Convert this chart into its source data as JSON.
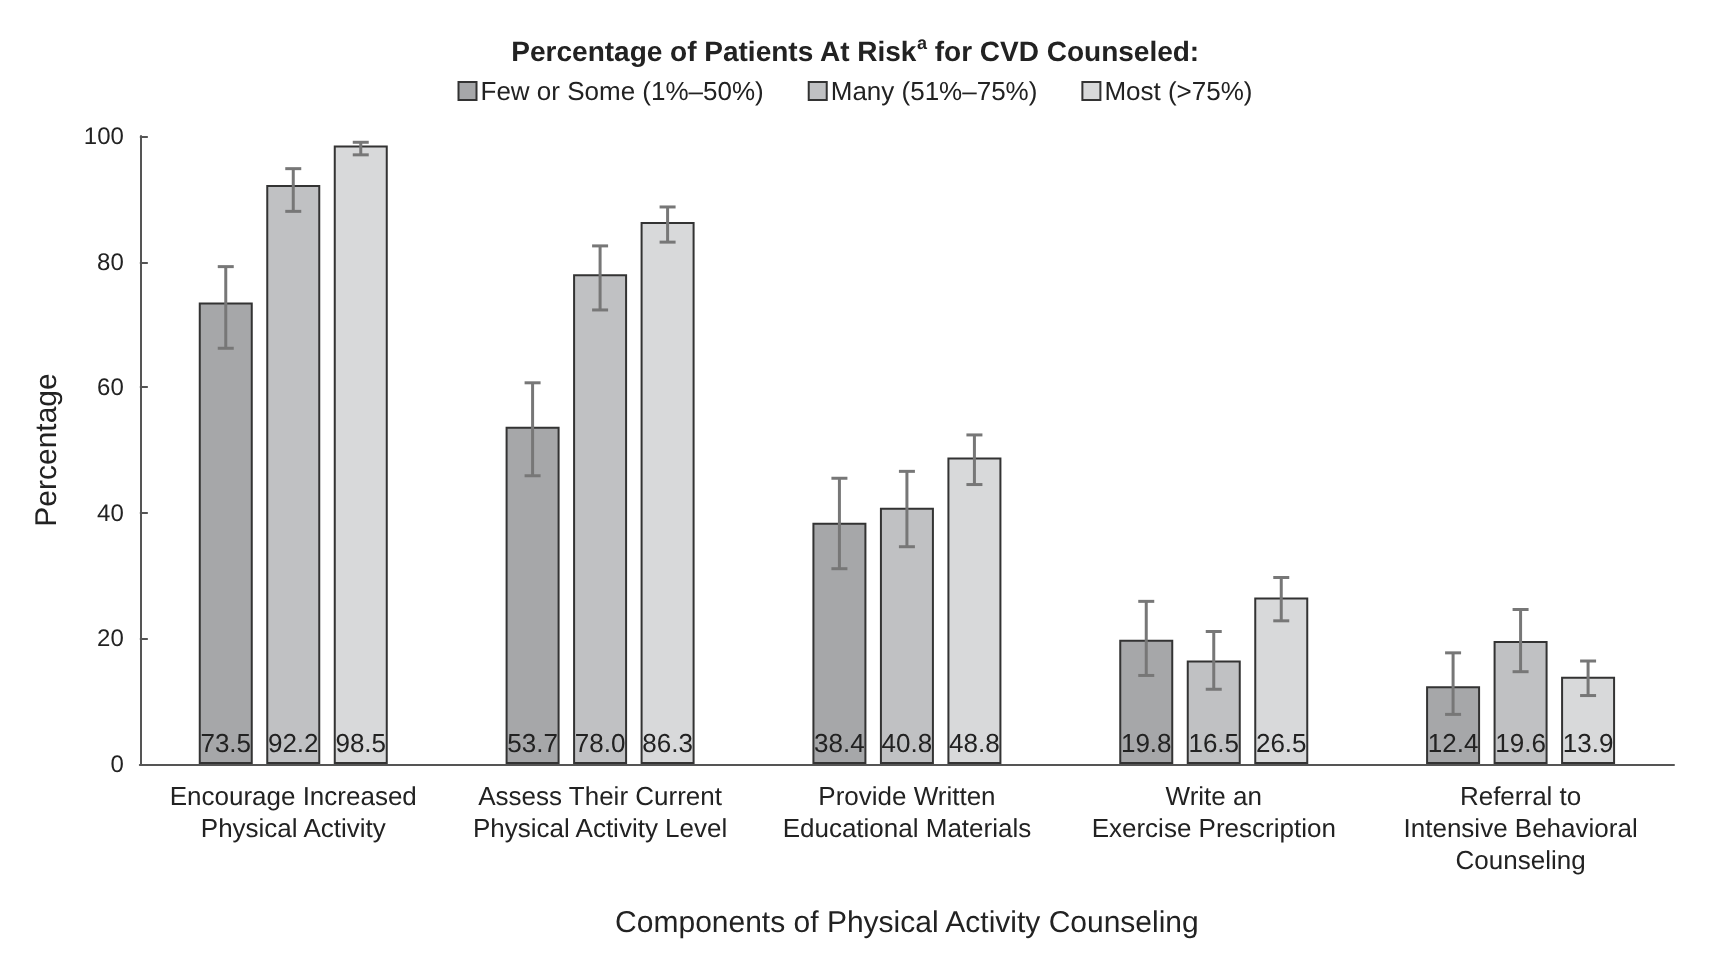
{
  "chart_data": {
    "type": "bar",
    "title": "Percentage of Patients At Risk$^{a}$ for CVD Counseled:",
    "xlabel": "Components of Physical Activity Counseling",
    "ylabel": "Percentage",
    "categories": [
      "Encourage Increased\nPhysical Activity",
      "Assess Their Current\nPhysical Activity Level",
      "Provide Written\nEducational Materials",
      "Write an\nExercise Prescription",
      "Referral to\nIntensive Behavioral\nCounseling"
    ],
    "series": [
      {
        "name": "Few or Some (1%–50%)",
        "color": "#a6a7a9",
        "values": [
          73.5,
          53.7,
          38.4,
          19.8,
          12.4
        ],
        "value_labels": [
          "73.5",
          "53.7",
          "38.4",
          "19.8",
          "12.4"
        ],
        "errors": [
          [
            66.2,
            79.2
          ],
          [
            45.9,
            60.7
          ],
          [
            31.1,
            45.5
          ],
          [
            14.1,
            25.9
          ],
          [
            7.9,
            17.7
          ]
        ]
      },
      {
        "name": "Many (51%–75%)",
        "color": "#c0c1c3",
        "values": [
          92.2,
          78.0,
          40.8,
          16.5,
          19.6
        ],
        "value_labels": [
          "92.2",
          "78.0",
          "40.8",
          "16.5",
          "19.6"
        ],
        "errors": [
          [
            88.0,
            94.8
          ],
          [
            72.3,
            82.5
          ],
          [
            34.6,
            46.6
          ],
          [
            11.9,
            21.1
          ],
          [
            14.7,
            24.6
          ]
        ]
      },
      {
        "name": "Most (>75%)",
        "color": "#d8d9da",
        "values": [
          98.5,
          86.3,
          48.8,
          26.5,
          13.9
        ],
        "value_labels": [
          "98.5",
          "86.3",
          "48.8",
          "26.5",
          "13.9"
        ],
        "errors": [
          [
            97.0,
            99.0
          ],
          [
            83.1,
            88.7
          ],
          [
            44.5,
            52.4
          ],
          [
            22.8,
            29.7
          ],
          [
            10.9,
            16.4
          ]
        ]
      }
    ],
    "ylim": [
      0,
      100
    ],
    "yticks": [
      0,
      20,
      40,
      60,
      80,
      100
    ],
    "grid": false,
    "legend": "top"
  }
}
